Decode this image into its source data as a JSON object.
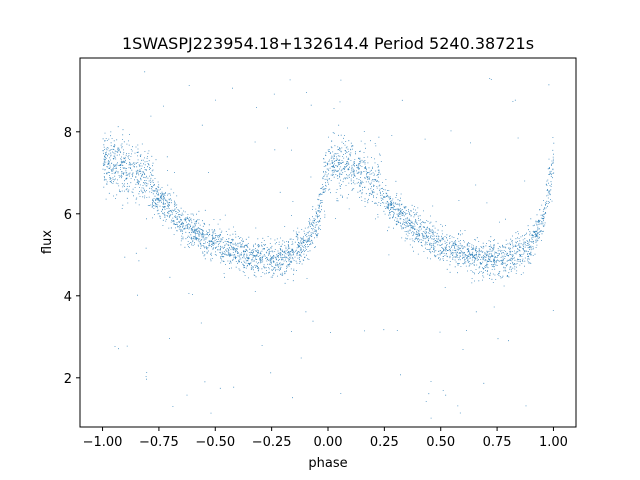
{
  "chart_data": {
    "type": "scatter",
    "title": "1SWASPJ223954.18+132614.4 Period 5240.38721s",
    "xlabel": "phase",
    "ylabel": "flux",
    "xlim": [
      -1.1,
      1.1
    ],
    "ylim": [
      0.8,
      9.8
    ],
    "xticks": [
      -1.0,
      -0.75,
      -0.5,
      -0.25,
      0.0,
      0.25,
      0.5,
      0.75,
      1.0
    ],
    "xtick_labels": [
      "−1.00",
      "−0.75",
      "−0.50",
      "−0.25",
      "0.00",
      "0.25",
      "0.50",
      "0.75",
      "1.00"
    ],
    "yticks": [
      2,
      4,
      6,
      8
    ],
    "ytick_labels": [
      "2",
      "4",
      "6",
      "8"
    ],
    "grid": false,
    "marker_color": "#1f77b4",
    "profile": {
      "description_of_shape": "folded light curve over phase -1 to 1",
      "phase": [
        0.0,
        0.05,
        0.1,
        0.15,
        0.2,
        0.25,
        0.3,
        0.35,
        0.4,
        0.45,
        0.5,
        0.55,
        0.6,
        0.65,
        0.7,
        0.75,
        0.8,
        0.85,
        0.9,
        0.95,
        1.0
      ],
      "flux": [
        7.3,
        7.2,
        7.1,
        7.0,
        6.8,
        6.4,
        6.1,
        5.8,
        5.6,
        5.4,
        5.25,
        5.15,
        5.05,
        4.97,
        4.92,
        4.9,
        4.95,
        5.05,
        5.3,
        5.8,
        7.3
      ]
    }
  }
}
